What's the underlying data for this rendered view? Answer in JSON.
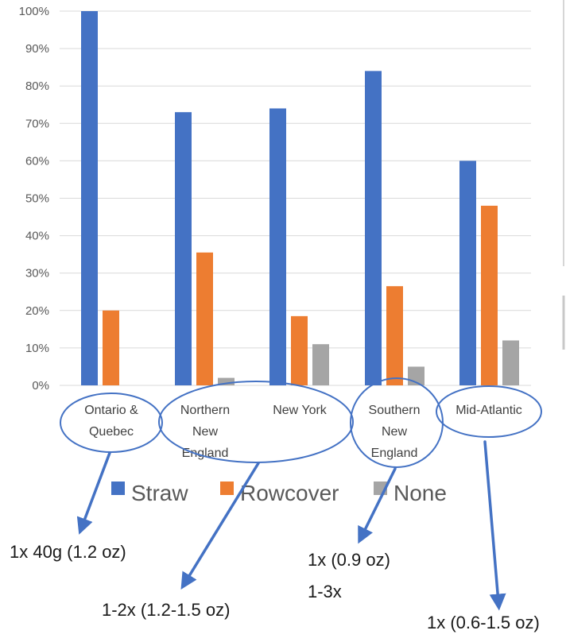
{
  "chart_data": {
    "type": "bar",
    "categories": [
      "Ontario & Quebec",
      "Northern New England",
      "New York",
      "Southern New England",
      "Mid-Atlantic"
    ],
    "series": [
      {
        "name": "Straw",
        "values": [
          100,
          73,
          74,
          84,
          60
        ],
        "color": "#4472C4"
      },
      {
        "name": "Rowcover",
        "values": [
          20,
          35.5,
          18.5,
          26.5,
          48
        ],
        "color": "#ED7D31"
      },
      {
        "name": "None",
        "values": [
          0,
          2,
          11,
          5,
          12
        ],
        "color": "#A5A5A5"
      }
    ],
    "y_ticks": [
      "0%",
      "10%",
      "20%",
      "30%",
      "40%",
      "50%",
      "60%",
      "70%",
      "80%",
      "90%",
      "100%"
    ],
    "ylim": [
      0,
      100
    ],
    "unit": "%",
    "grid": true,
    "legend_position": "bottom",
    "annotation_color": "#4472C4",
    "annotations": [
      {
        "text": "1x 40g (1.2 oz)",
        "points_to": "Ontario & Quebec"
      },
      {
        "text": "1-2x (1.2-1.5 oz)",
        "points_to": "Northern New England and New York"
      },
      {
        "text": "1x (0.9 oz)",
        "points_to": "Southern New England"
      },
      {
        "text": "1-3x",
        "points_to": "Southern New England"
      },
      {
        "text": "1x (0.6-1.5 oz)",
        "points_to": "Mid-Atlantic"
      }
    ]
  }
}
